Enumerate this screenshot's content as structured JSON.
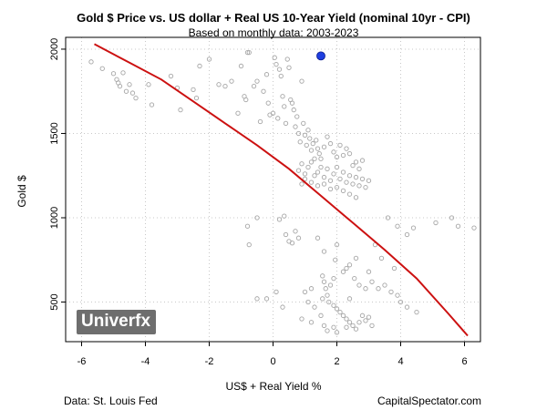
{
  "chart_data": {
    "type": "scatter",
    "title": "Gold $ Price vs. US dollar + Real US 10-Year Yield (nominal 10yr - CPI)",
    "subtitle": "Based on monthly data: 2003-2023",
    "xlabel": "US$ + Real Yield %",
    "ylabel": "Gold $",
    "xlim": [
      -6.5,
      6.5
    ],
    "ylim": [
      265,
      2070
    ],
    "x_ticks": [
      -6,
      -4,
      -2,
      0,
      2,
      4,
      6
    ],
    "y_ticks": [
      500,
      1000,
      1500,
      2000
    ],
    "grid": true,
    "points": [
      [
        -5.7,
        1925
      ],
      [
        -5.35,
        1885
      ],
      [
        -5.0,
        1855
      ],
      [
        -4.9,
        1820
      ],
      [
        -4.85,
        1800
      ],
      [
        -4.8,
        1780
      ],
      [
        -4.6,
        1750
      ],
      [
        -4.4,
        1740
      ],
      [
        -4.7,
        1860
      ],
      [
        -4.5,
        1790
      ],
      [
        -4.3,
        1710
      ],
      [
        -3.9,
        1790
      ],
      [
        -3.8,
        1670
      ],
      [
        -3.2,
        1840
      ],
      [
        -3.0,
        1770
      ],
      [
        -2.9,
        1640
      ],
      [
        -2.5,
        1760
      ],
      [
        -2.4,
        1710
      ],
      [
        -2.3,
        1900
      ],
      [
        -2.0,
        1940
      ],
      [
        -1.7,
        1790
      ],
      [
        -1.5,
        1780
      ],
      [
        -1.3,
        1810
      ],
      [
        -1.1,
        1620
      ],
      [
        -1.0,
        1900
      ],
      [
        -0.9,
        1720
      ],
      [
        -0.85,
        1700
      ],
      [
        -0.8,
        1980
      ],
      [
        -0.75,
        1980
      ],
      [
        -0.6,
        1780
      ],
      [
        -0.5,
        1810
      ],
      [
        -0.4,
        1570
      ],
      [
        -0.3,
        1750
      ],
      [
        -0.2,
        1850
      ],
      [
        -0.15,
        1680
      ],
      [
        -0.1,
        1610
      ],
      [
        0.0,
        1620
      ],
      [
        0.05,
        1950
      ],
      [
        0.1,
        1910
      ],
      [
        0.15,
        1590
      ],
      [
        0.2,
        1880
      ],
      [
        0.25,
        1840
      ],
      [
        0.3,
        1720
      ],
      [
        0.35,
        1660
      ],
      [
        0.4,
        1560
      ],
      [
        0.45,
        1940
      ],
      [
        0.5,
        1890
      ],
      [
        0.55,
        1700
      ],
      [
        0.6,
        1680
      ],
      [
        0.65,
        1640
      ],
      [
        0.7,
        1540
      ],
      [
        0.75,
        1600
      ],
      [
        0.8,
        1500
      ],
      [
        0.85,
        1450
      ],
      [
        0.9,
        1810
      ],
      [
        0.95,
        1560
      ],
      [
        1.0,
        1490
      ],
      [
        1.05,
        1430
      ],
      [
        1.1,
        1520
      ],
      [
        1.15,
        1470
      ],
      [
        1.2,
        1400
      ],
      [
        1.25,
        1440
      ],
      [
        1.3,
        1350
      ],
      [
        1.35,
        1460
      ],
      [
        1.4,
        1410
      ],
      [
        1.45,
        1380
      ],
      [
        1.5,
        1350
      ],
      [
        1.6,
        1420
      ],
      [
        1.7,
        1480
      ],
      [
        1.8,
        1440
      ],
      [
        1.9,
        1390
      ],
      [
        2.0,
        1360
      ],
      [
        2.1,
        1430
      ],
      [
        2.2,
        1370
      ],
      [
        2.3,
        1410
      ],
      [
        2.4,
        1380
      ],
      [
        2.5,
        1310
      ],
      [
        2.6,
        1330
      ],
      [
        2.7,
        1290
      ],
      [
        2.8,
        1340
      ],
      [
        0.8,
        1280
      ],
      [
        0.9,
        1320
      ],
      [
        1.0,
        1260
      ],
      [
        1.1,
        1300
      ],
      [
        1.2,
        1330
      ],
      [
        1.3,
        1250
      ],
      [
        1.4,
        1270
      ],
      [
        1.5,
        1300
      ],
      [
        1.6,
        1240
      ],
      [
        1.7,
        1290
      ],
      [
        1.8,
        1220
      ],
      [
        1.9,
        1260
      ],
      [
        2.0,
        1300
      ],
      [
        2.1,
        1230
      ],
      [
        2.2,
        1270
      ],
      [
        2.3,
        1210
      ],
      [
        2.4,
        1250
      ],
      [
        2.5,
        1200
      ],
      [
        2.6,
        1240
      ],
      [
        2.7,
        1190
      ],
      [
        2.8,
        1230
      ],
      [
        2.9,
        1180
      ],
      [
        3.0,
        1220
      ],
      [
        2.2,
        1160
      ],
      [
        2.4,
        1140
      ],
      [
        2.6,
        1120
      ],
      [
        2.0,
        1180
      ],
      [
        1.8,
        1170
      ],
      [
        1.6,
        1200
      ],
      [
        1.4,
        1190
      ],
      [
        1.2,
        1210
      ],
      [
        1.0,
        1230
      ],
      [
        0.9,
        1200
      ],
      [
        -0.5,
        1000
      ],
      [
        -0.8,
        950
      ],
      [
        -0.75,
        840
      ],
      [
        0.2,
        990
      ],
      [
        0.35,
        1010
      ],
      [
        0.4,
        900
      ],
      [
        0.5,
        860
      ],
      [
        0.6,
        850
      ],
      [
        0.7,
        920
      ],
      [
        0.8,
        880
      ],
      [
        1.4,
        880
      ],
      [
        1.6,
        800
      ],
      [
        2.0,
        840
      ],
      [
        2.6,
        760
      ],
      [
        3.2,
        840
      ],
      [
        3.6,
        1000
      ],
      [
        3.9,
        950
      ],
      [
        4.2,
        900
      ],
      [
        4.4,
        940
      ],
      [
        5.1,
        970
      ],
      [
        5.6,
        1000
      ],
      [
        5.8,
        950
      ],
      [
        6.3,
        940
      ],
      [
        1.55,
        655
      ],
      [
        1.6,
        620
      ],
      [
        1.65,
        580
      ],
      [
        1.7,
        540
      ],
      [
        1.55,
        520
      ],
      [
        1.75,
        500
      ],
      [
        1.9,
        480
      ],
      [
        2.0,
        460
      ],
      [
        2.1,
        440
      ],
      [
        2.2,
        420
      ],
      [
        2.3,
        400
      ],
      [
        2.4,
        380
      ],
      [
        2.5,
        360
      ],
      [
        2.6,
        340
      ],
      [
        2.7,
        380
      ],
      [
        2.8,
        420
      ],
      [
        2.9,
        390
      ],
      [
        3.0,
        410
      ],
      [
        3.1,
        360
      ],
      [
        2.55,
        640
      ],
      [
        2.7,
        600
      ],
      [
        2.9,
        580
      ],
      [
        3.1,
        620
      ],
      [
        3.3,
        580
      ],
      [
        3.5,
        600
      ],
      [
        3.7,
        560
      ],
      [
        3.9,
        540
      ],
      [
        4.0,
        500
      ],
      [
        2.3,
        700
      ],
      [
        1.9,
        640
      ],
      [
        1.8,
        600
      ],
      [
        2.4,
        520
      ],
      [
        1.2,
        580
      ],
      [
        1.1,
        500
      ],
      [
        1.0,
        560
      ],
      [
        1.3,
        470
      ],
      [
        1.5,
        420
      ],
      [
        1.6,
        360
      ],
      [
        1.7,
        330
      ],
      [
        1.9,
        350
      ],
      [
        2.0,
        320
      ],
      [
        -0.5,
        520
      ],
      [
        0.3,
        470
      ],
      [
        0.9,
        400
      ],
      [
        1.2,
        380
      ],
      [
        2.3,
        350
      ],
      [
        4.2,
        470
      ],
      [
        4.5,
        440
      ],
      [
        3.4,
        760
      ],
      [
        3.8,
        700
      ],
      [
        3.0,
        680
      ],
      [
        2.4,
        720
      ],
      [
        2.2,
        680
      ],
      [
        1.95,
        750
      ],
      [
        0.1,
        560
      ],
      [
        -0.2,
        520
      ]
    ],
    "highlight": {
      "x": 1.5,
      "y": 1960,
      "color": "#1f3fe0"
    },
    "fit_line": {
      "color": "#cc1111",
      "x": [
        -5.6,
        -4.5,
        -3.5,
        -2.5,
        -1.5,
        -0.5,
        0.5,
        1.5,
        2.5,
        3.5,
        4.5,
        5.5,
        6.1
      ],
      "y": [
        2030,
        1920,
        1820,
        1690,
        1560,
        1430,
        1290,
        1130,
        970,
        810,
        640,
        430,
        300
      ]
    },
    "point_color": "#a6a6a6"
  },
  "footer": {
    "source": "Data: St. Louis Fed",
    "site": "CapitalSpectator.com",
    "logo": "Univerfx"
  }
}
